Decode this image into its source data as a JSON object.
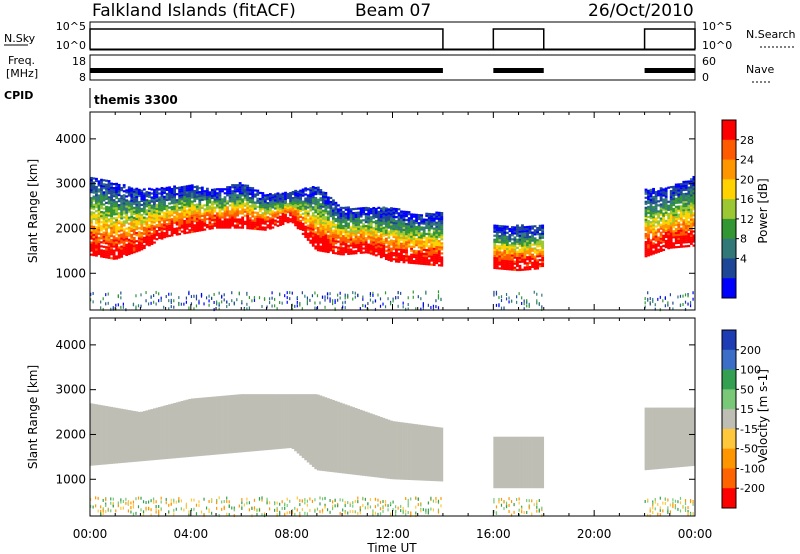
{
  "header": {
    "title": "Falkland Islands (fitACF)",
    "beam": "Beam 07",
    "date": "26/Oct/2010"
  },
  "strips": {
    "nsky_label": "N.Sky",
    "nsky_ticks": [
      "10^5",
      "10^0"
    ],
    "nsearch_label": "N.Search",
    "nsearch_ticks": [
      "10^5",
      "10^0"
    ],
    "freq_label_1": "Freq.",
    "freq_label_2": "[MHz]",
    "freq_ticks": [
      "18",
      "8"
    ],
    "nave_label": "Nave",
    "nave_ticks": [
      "60",
      "0"
    ],
    "cpid_label": "CPID",
    "cpid_value": "themis 3300",
    "data_intervals_hours": [
      [
        0,
        14
      ],
      [
        16,
        18
      ],
      [
        22,
        24
      ]
    ]
  },
  "axes": {
    "ylabel": "Slant Range [km]",
    "yticks": [
      "4000",
      "3000",
      "2000",
      "1000"
    ],
    "xlabel": "Time UT",
    "xticks": [
      "00:00",
      "04:00",
      "08:00",
      "12:00",
      "16:00",
      "20:00",
      "00:00"
    ]
  },
  "colorbars": {
    "power": {
      "label": "Power [dB]",
      "ticks": [
        "28",
        "24",
        "20",
        "16",
        "12",
        "8",
        "4"
      ],
      "colors": [
        "#ff0000",
        "#ff5a00",
        "#ff9600",
        "#ffd200",
        "#9bc832",
        "#329632",
        "#327878",
        "#1e4696",
        "#0000ff"
      ]
    },
    "velocity": {
      "label": "Velocity [m s-1]",
      "ticks": [
        "200",
        "100",
        "50",
        "15",
        "-15",
        "-50",
        "-100",
        "-200"
      ],
      "colors": [
        "#1e3cb4",
        "#3c6ec8",
        "#32a050",
        "#78c878",
        "#bebeb4",
        "#ffc83c",
        "#ff9600",
        "#ff6400",
        "#ff0000"
      ]
    }
  },
  "chart_data": [
    {
      "type": "heatmap",
      "name": "power",
      "x_range_hours": [
        0,
        24
      ],
      "ylim_km": [
        180,
        4600
      ],
      "clim_db": [
        0,
        30
      ],
      "data_intervals_hours": [
        [
          0,
          14
        ],
        [
          16,
          18
        ],
        [
          22,
          24
        ]
      ],
      "bands_hours_km": [
        [
          0,
          1550,
          2600,
          3000
        ],
        [
          1,
          1450,
          2550,
          2850
        ],
        [
          2,
          1650,
          2600,
          2700
        ],
        [
          3,
          1950,
          2650,
          2750
        ],
        [
          4,
          2050,
          2600,
          2800
        ],
        [
          5,
          2150,
          2650,
          2700
        ],
        [
          6,
          2150,
          2750,
          2850
        ],
        [
          7,
          2100,
          2600,
          2600
        ],
        [
          8,
          2300,
          2800,
          2650
        ],
        [
          9,
          1650,
          2850,
          2800
        ],
        [
          10,
          1550,
          2400,
          2300
        ],
        [
          11,
          1600,
          2300,
          2300
        ],
        [
          12,
          1400,
          2250,
          2300
        ],
        [
          13,
          1350,
          2050,
          2150
        ],
        [
          14,
          1300,
          1950,
          2200
        ],
        [
          16,
          1250,
          1900,
          1900
        ],
        [
          17,
          1200,
          1850,
          1900
        ],
        [
          18,
          1250,
          1850,
          1900
        ],
        [
          22,
          1500,
          2300,
          2700
        ],
        [
          23,
          1700,
          2350,
          2750
        ],
        [
          24,
          1750,
          2300,
          3000
        ]
      ]
    },
    {
      "type": "heatmap",
      "name": "velocity",
      "x_range_hours": [
        0,
        24
      ],
      "ylim_km": [
        180,
        4600
      ],
      "clim_m_s": [
        -200,
        200
      ],
      "dominant_velocity_m_s": 0,
      "bands_hours_km": [
        [
          0,
          1300,
          2700
        ],
        [
          2,
          1400,
          2500
        ],
        [
          4,
          1500,
          2800
        ],
        [
          6,
          1600,
          2900
        ],
        [
          8,
          1700,
          2900
        ],
        [
          9,
          1200,
          2900
        ],
        [
          12,
          1000,
          2300
        ],
        [
          14,
          950,
          2150
        ],
        [
          16,
          800,
          1950
        ],
        [
          18,
          800,
          1950
        ],
        [
          22,
          1200,
          2600
        ],
        [
          24,
          1300,
          2600
        ]
      ]
    }
  ]
}
